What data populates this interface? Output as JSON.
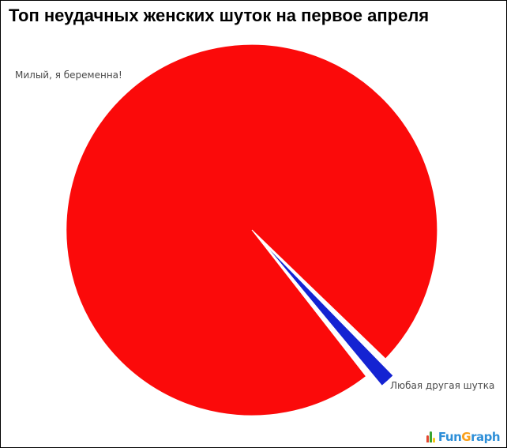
{
  "page": {
    "background_color": "#ffffff",
    "border_color": "#000000"
  },
  "chart_data": {
    "type": "pie",
    "title": "Топ неудачных женских шуток на первое апреля",
    "legend_position": "none",
    "labels_inline": true,
    "small_slice_direction_deg": 48,
    "slices": [
      {
        "label": "Милый, я беременна!",
        "value": 98.7,
        "color": "#fb0a0a",
        "exploded": false
      },
      {
        "label": "Любая другая шутка",
        "value": 1.3,
        "color": "#1423d2",
        "exploded": true
      }
    ]
  },
  "logo": {
    "icon": "bar-chart-icon",
    "text_fun": "Fun",
    "text_g": "G",
    "text_raph": "raph",
    "blue_color": "#2e8fd8",
    "orange_color": "#f9a01b"
  }
}
